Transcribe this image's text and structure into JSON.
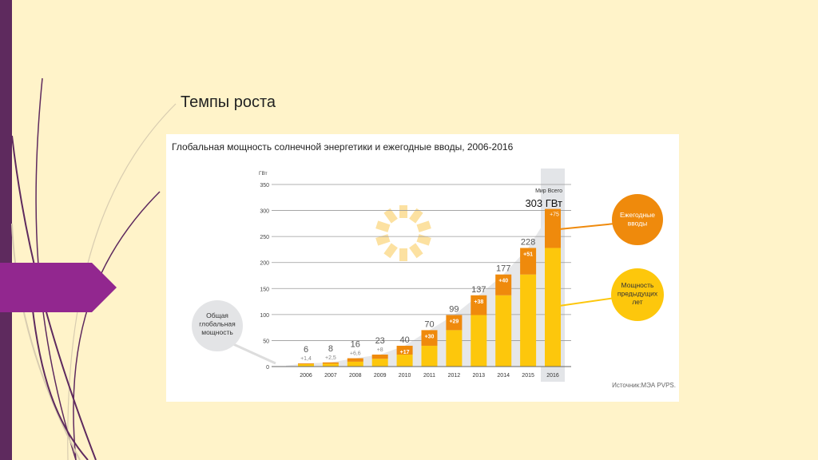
{
  "slide": {
    "title": "Темпы роста"
  },
  "colors": {
    "sidebar": "#5e2a5e",
    "arrow": "#92278f",
    "background": "#fff3c9",
    "previous": "#fdc70c",
    "additions": "#ef8a0c",
    "bubble_gray": "#e3e4e6"
  },
  "chart_data": {
    "type": "bar",
    "stacked": true,
    "title": "Глобальная мощность солнечной энергетики и ежегодные вводы, 2006-2016",
    "ylabel": "ГВт",
    "ylim": [
      0,
      350
    ],
    "yticks": [
      0,
      50,
      100,
      150,
      200,
      250,
      300,
      350
    ],
    "grid": true,
    "categories": [
      "2006",
      "2007",
      "2008",
      "2009",
      "2010",
      "2011",
      "2012",
      "2013",
      "2014",
      "2015",
      "2016"
    ],
    "totals": [
      "6",
      "8",
      "16",
      "23",
      "40",
      "70",
      "99",
      "137",
      "177",
      "228",
      "303"
    ],
    "addition_labels": [
      "+1,4",
      "+2,5",
      "+6,6",
      "+8",
      "+17",
      "+30",
      "+29",
      "+38",
      "+40",
      "+51",
      "+75"
    ],
    "series": [
      {
        "name": "Мощность предыдущих лет",
        "values": [
          4.6,
          5.5,
          9.4,
          15,
          23,
          40,
          70,
          99,
          137,
          177,
          228
        ]
      },
      {
        "name": "Ежегодные вводы",
        "values": [
          1.4,
          2.5,
          6.6,
          8,
          17,
          30,
          29,
          38,
          40,
          51,
          75
        ]
      }
    ],
    "total_series": {
      "name": "Общая глобальная мощность",
      "values": [
        6,
        8,
        16,
        23,
        40,
        70,
        99,
        137,
        177,
        228,
        303
      ]
    },
    "highlight": {
      "category": "2016",
      "label_top": "Мир Всего",
      "label_value": "303 ГВт"
    },
    "source": "Источник:МЭА PVPS."
  }
}
